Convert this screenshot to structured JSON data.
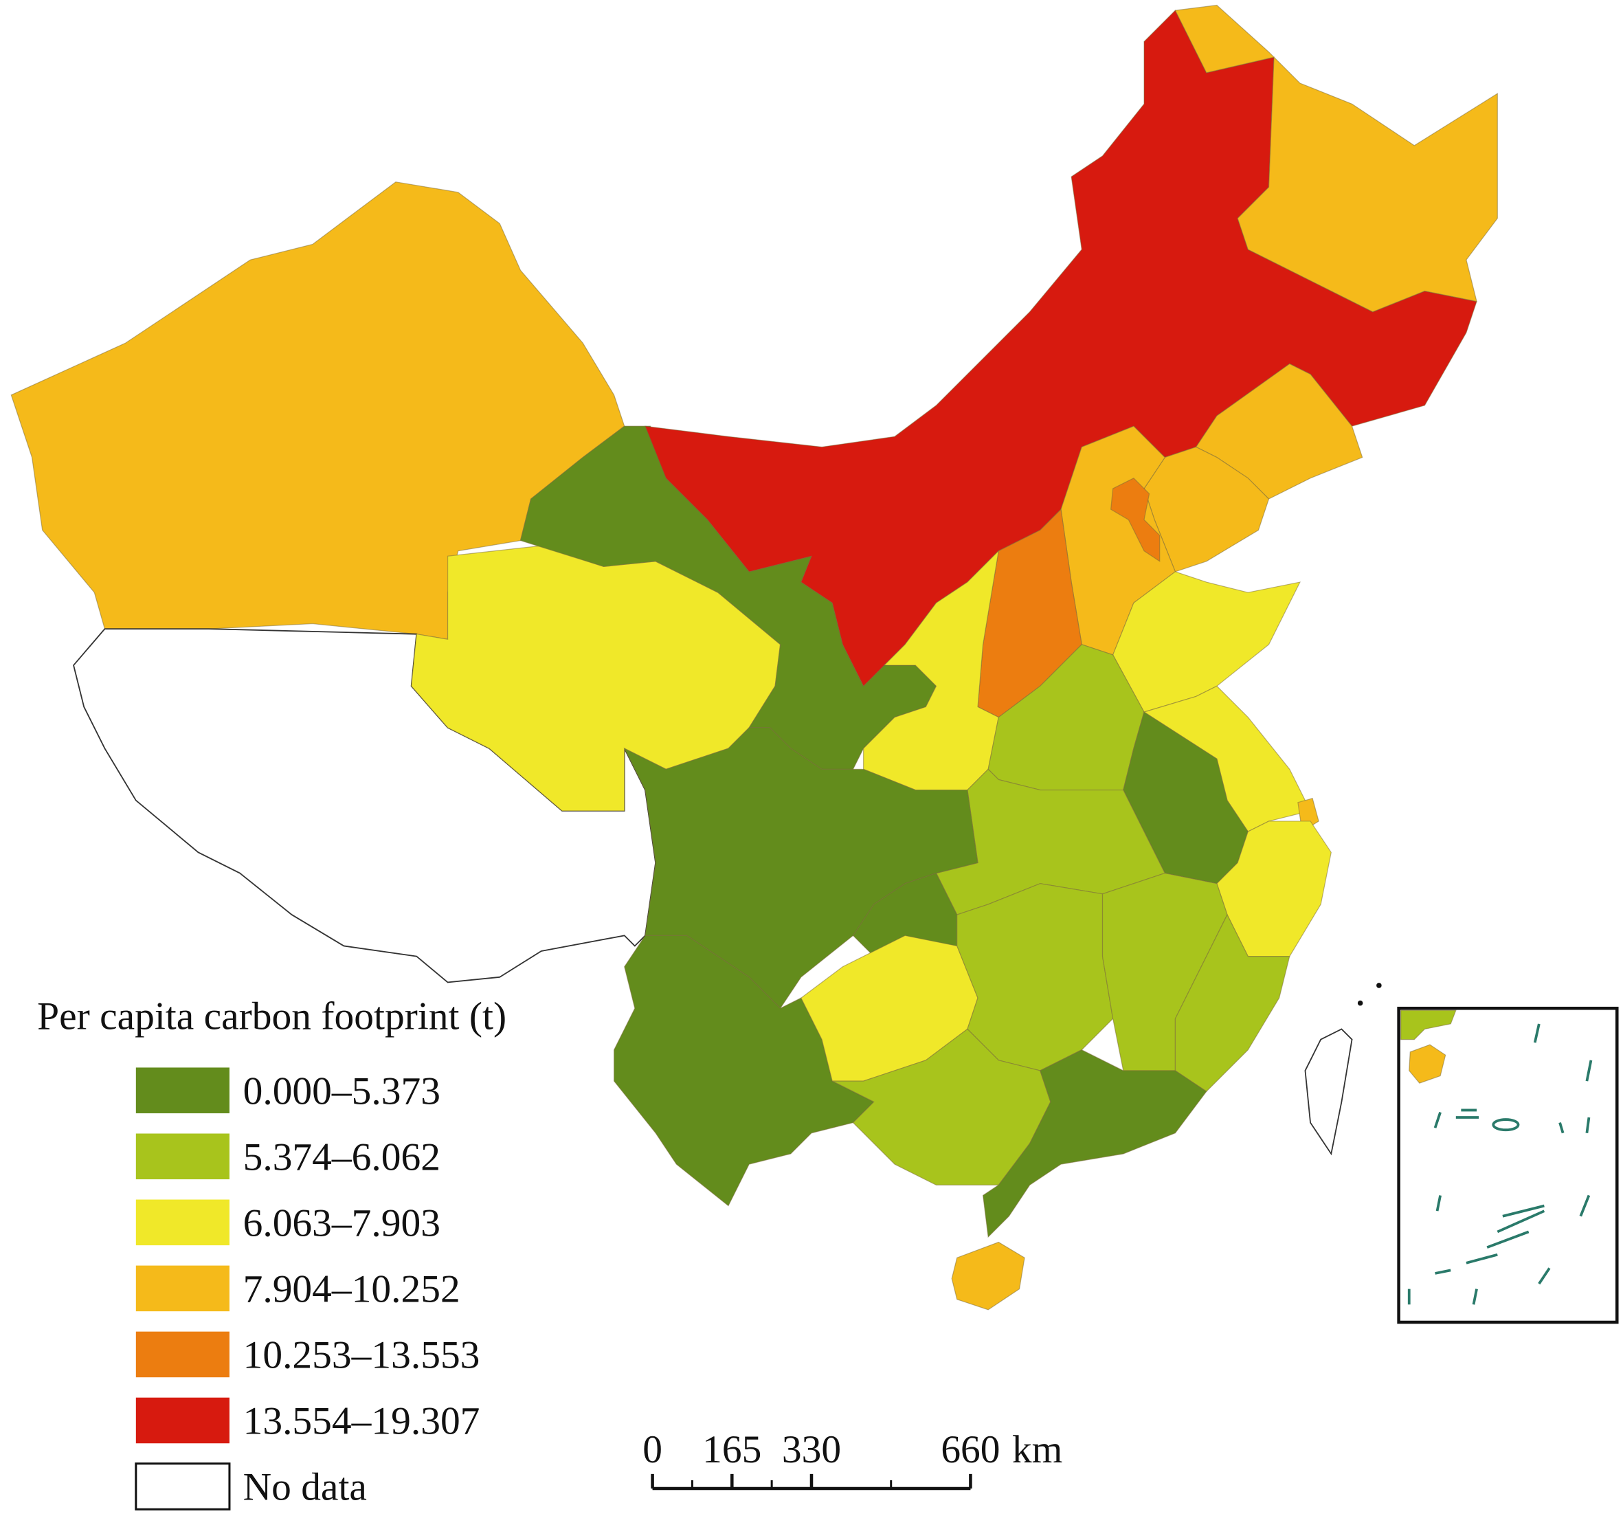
{
  "legend": {
    "title": "Per capita carbon footprint (t)",
    "classes": [
      {
        "label": "0.000–5.373",
        "color": "#638c1c"
      },
      {
        "label": "5.374–6.062",
        "color": "#a8c41c"
      },
      {
        "label": "6.063–7.903",
        "color": "#f0e829"
      },
      {
        "label": "7.904–10.252",
        "color": "#f5ba1a"
      },
      {
        "label": "10.253–13.553",
        "color": "#ec7d10"
      },
      {
        "label": "13.554–19.307",
        "color": "#d71a0f"
      }
    ],
    "no_data": {
      "label": "No data",
      "color": "#ffffff"
    }
  },
  "scale_bar": {
    "ticks": [
      0,
      165,
      330,
      660
    ],
    "unit": "km"
  }
}
